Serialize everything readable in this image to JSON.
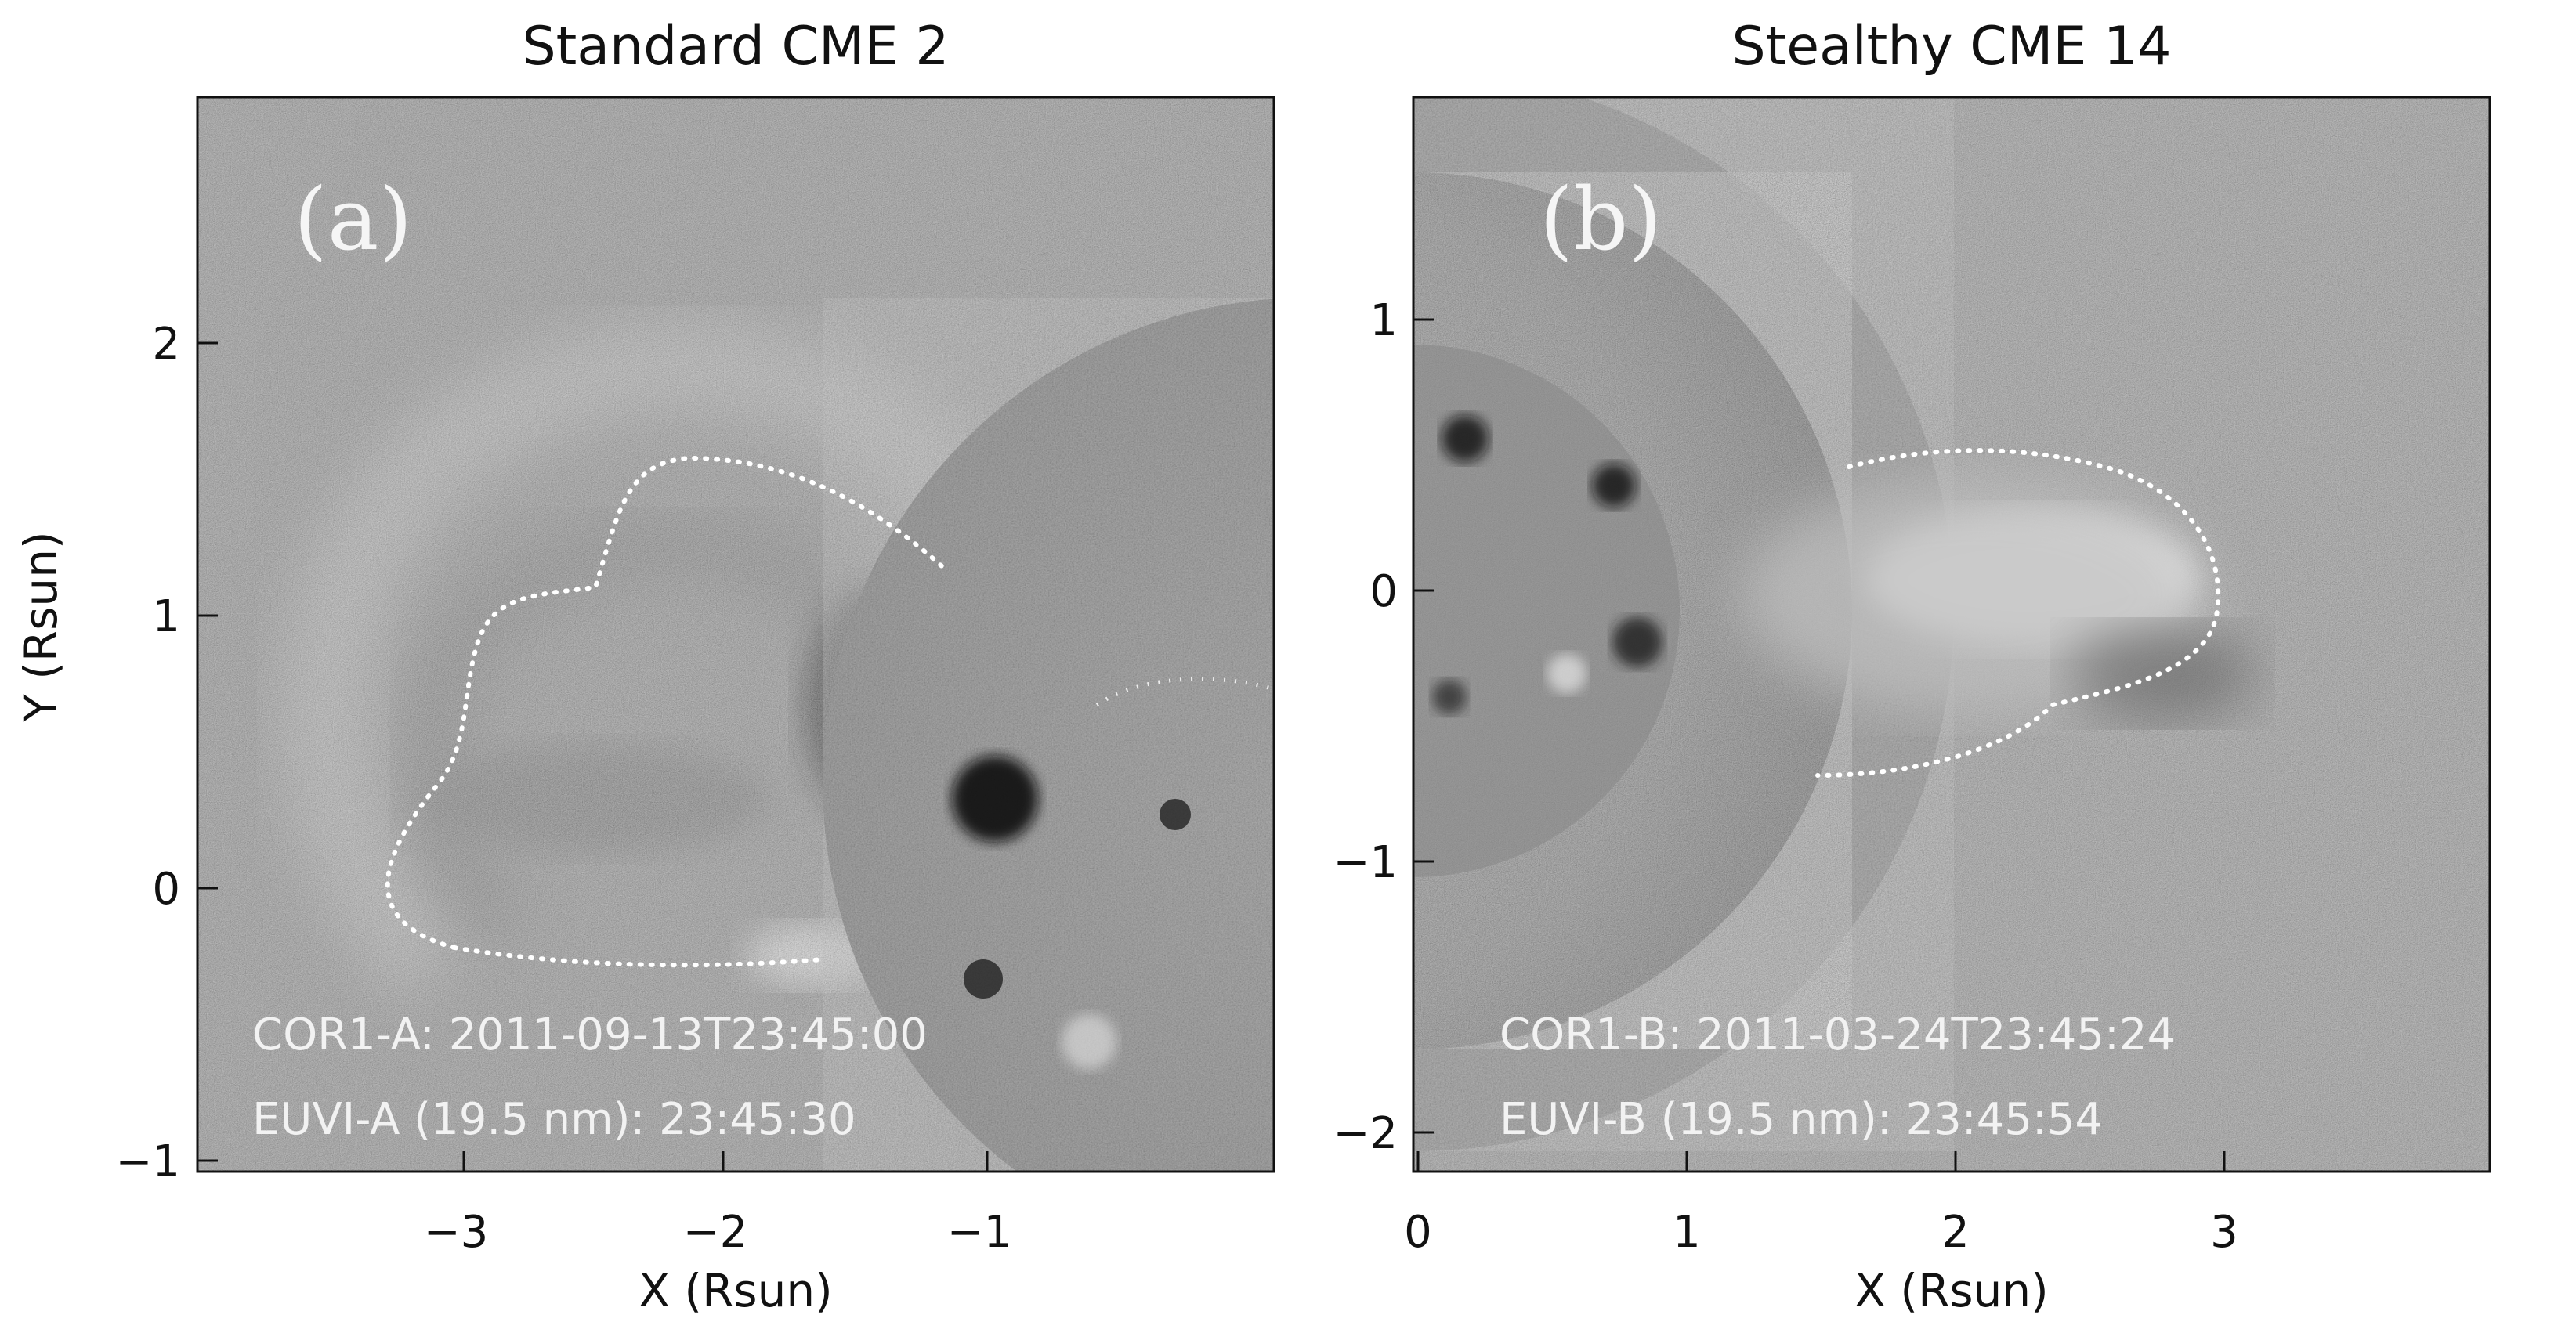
{
  "panels": [
    {
      "title": "Standard CME 2",
      "label": "(a)",
      "xlabel": "X (Rsun)",
      "ylabel": "Y (Rsun)",
      "x_ticks": [
        "−3",
        "−2",
        "−1"
      ],
      "y_ticks": [
        "2",
        "1",
        "0",
        "−1"
      ],
      "annotation_line1": "COR1-A: 2011-09-13T23:45:00",
      "annotation_line2": "EUVI-A (19.5 nm): 23:45:30"
    },
    {
      "title": "Stealthy CME 14",
      "label": "(b)",
      "xlabel": "X (Rsun)",
      "ylabel": "",
      "x_ticks": [
        "0",
        "1",
        "2",
        "3"
      ],
      "y_ticks": [
        "1",
        "0",
        "−1",
        "−2"
      ],
      "annotation_line1": "COR1-B: 2011-03-24T23:45:24",
      "annotation_line2": "EUVI-B (19.5 nm): 23:45:54"
    }
  ],
  "colors": {
    "background": "#ffffff",
    "image_gray": "#8a8a8a",
    "dotted_outline": "#ffffff",
    "annotation_text": "#f2f2f2",
    "axis": "#111111"
  }
}
